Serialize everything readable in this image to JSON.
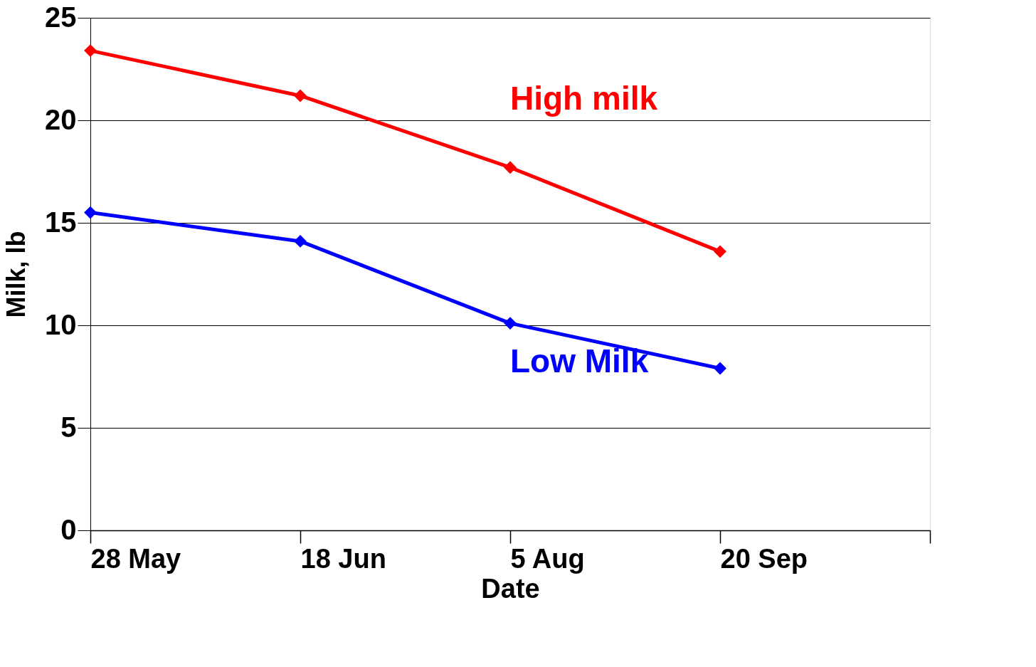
{
  "chart_data": {
    "type": "line",
    "xlabel": "Date",
    "ylabel": "Milk, lb",
    "categories": [
      "28 May",
      "18 Jun",
      "5 Aug",
      "20 Sep",
      null
    ],
    "series": [
      {
        "name": "High milk",
        "color": "#ff0000",
        "values": [
          23.4,
          21.2,
          17.7,
          13.6,
          null
        ]
      },
      {
        "name": "Low Milk",
        "color": "#0000ff",
        "values": [
          15.5,
          14.1,
          10.1,
          7.9,
          null
        ]
      }
    ],
    "ylim": [
      0,
      25
    ],
    "yticks": [
      0,
      5,
      10,
      15,
      20,
      25
    ],
    "grid": "y",
    "legend": false,
    "marker": "diamond",
    "line_style": "solid"
  }
}
